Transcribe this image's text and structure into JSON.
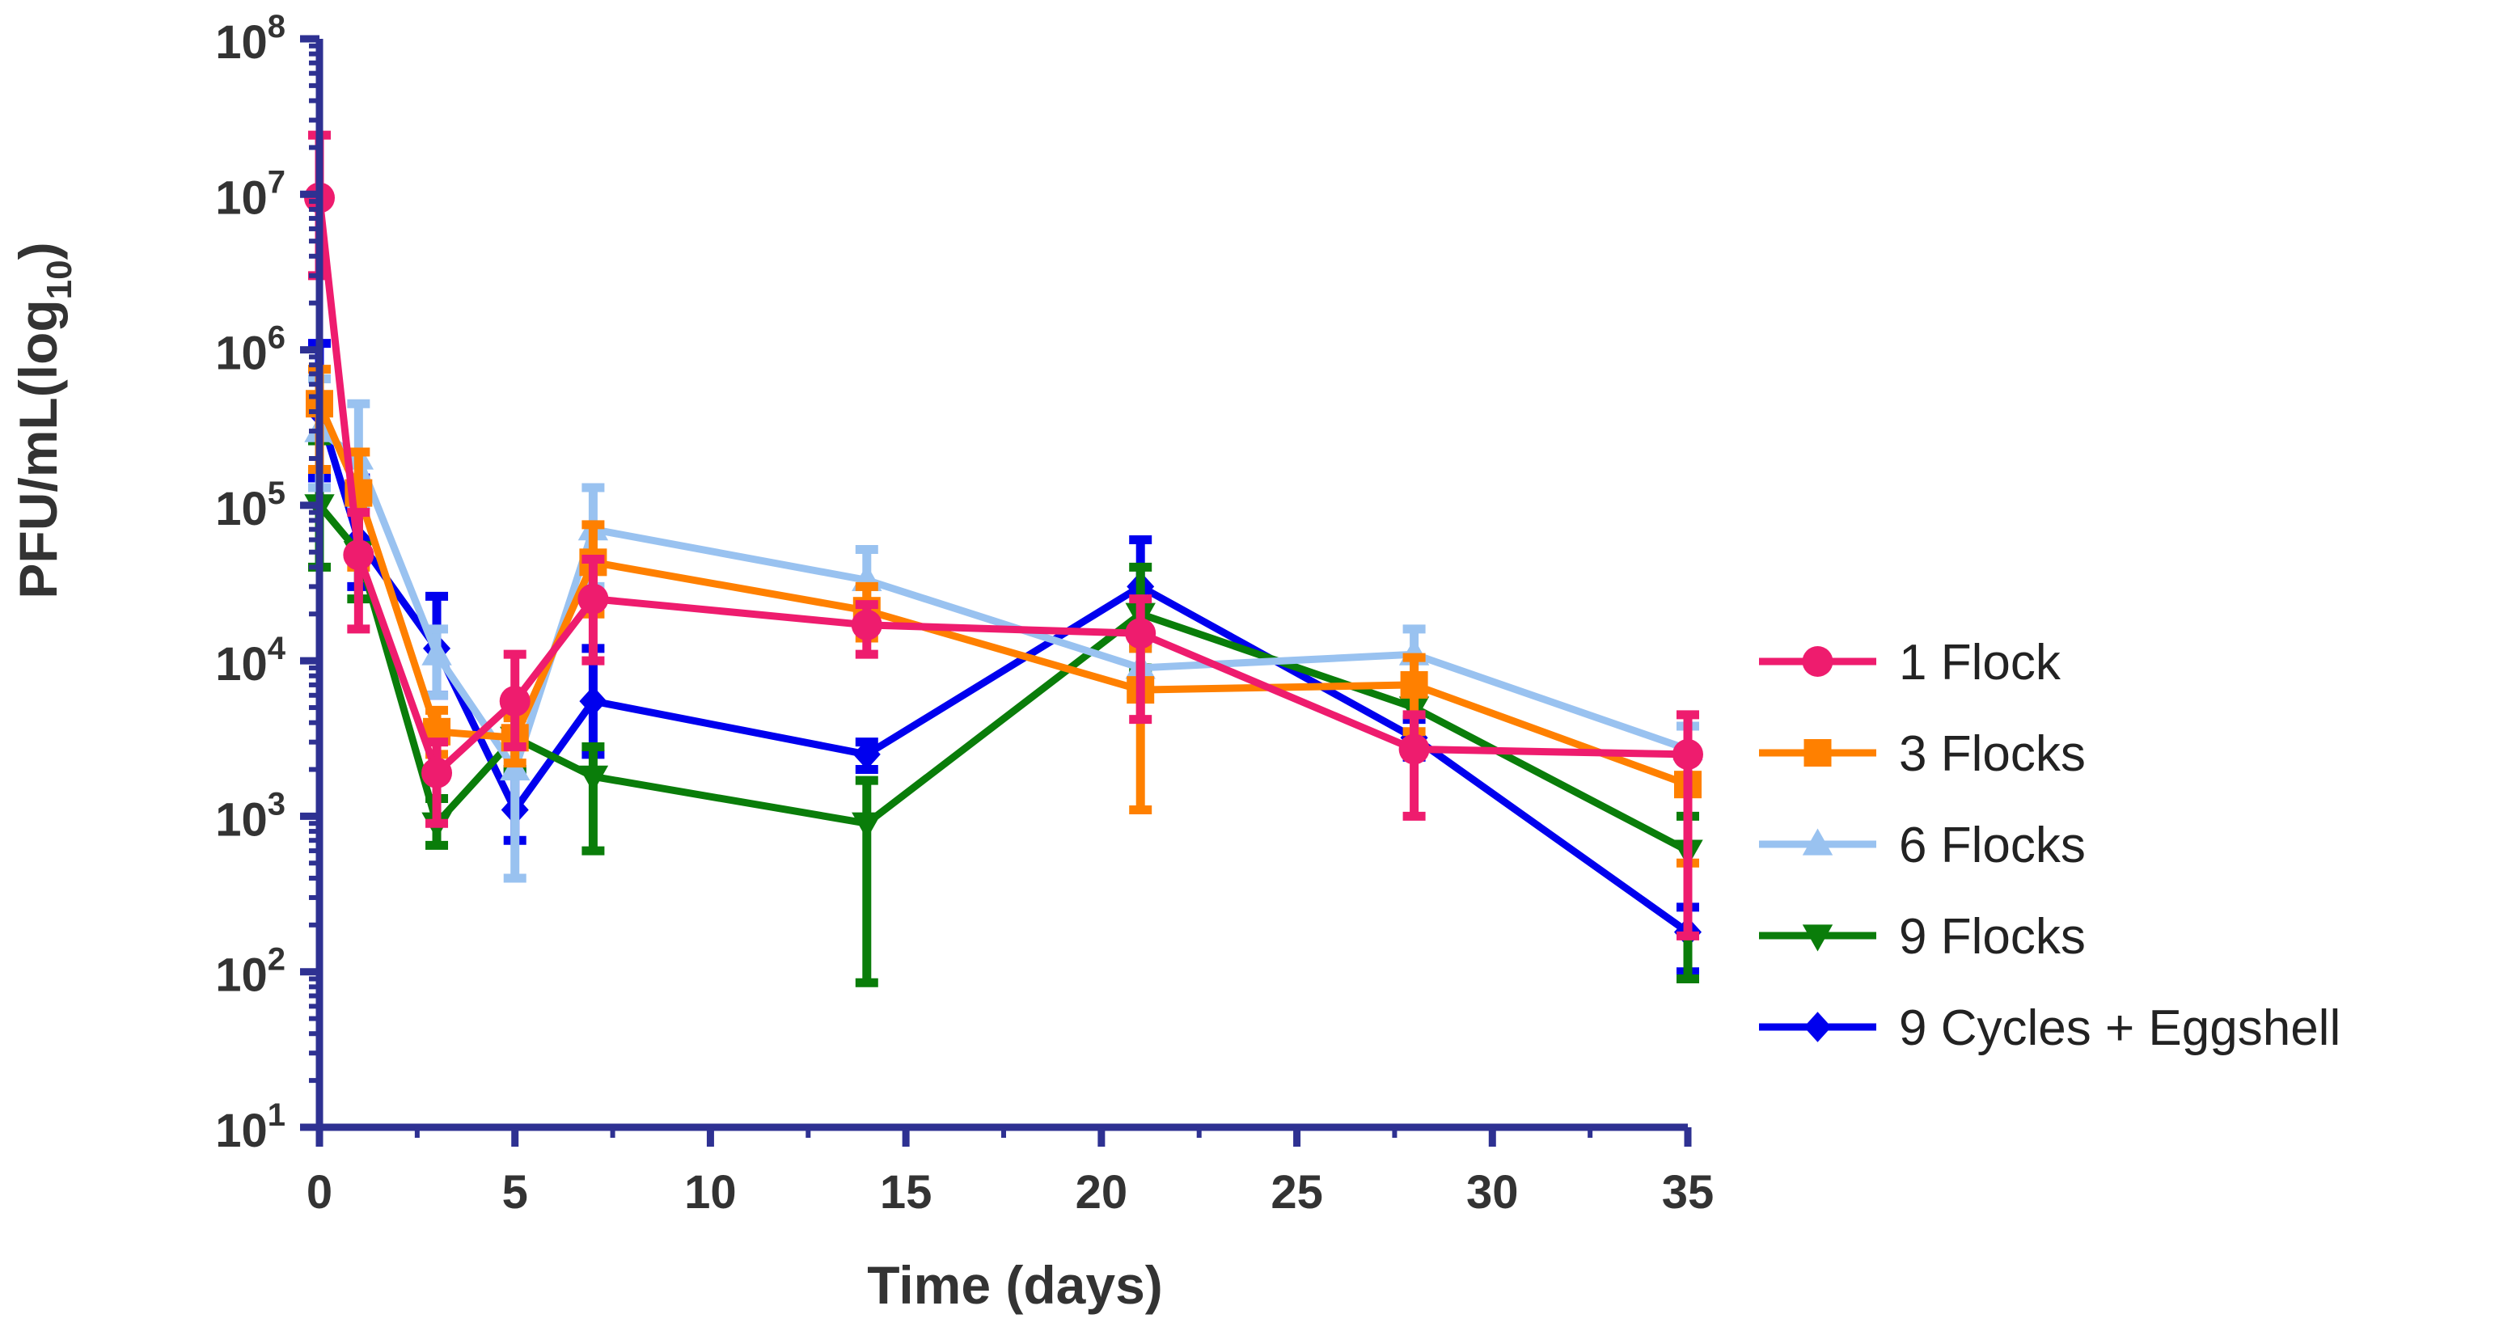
{
  "chart_data": {
    "type": "line",
    "title": "",
    "xlabel": "Time (days)",
    "ylabel_main": "PFU/mL(log",
    "ylabel_sub": "10",
    "ylabel_close": ")",
    "yscale": "log",
    "xlim": [
      0,
      35
    ],
    "ylim": [
      10,
      100000000
    ],
    "x_ticks": [
      0,
      5,
      10,
      15,
      20,
      25,
      30,
      35
    ],
    "y_ticks": [
      {
        "base": "10",
        "exp": "1",
        "value": 10
      },
      {
        "base": "10",
        "exp": "2",
        "value": 100
      },
      {
        "base": "10",
        "exp": "3",
        "value": 1000
      },
      {
        "base": "10",
        "exp": "4",
        "value": 10000
      },
      {
        "base": "10",
        "exp": "5",
        "value": 100000
      },
      {
        "base": "10",
        "exp": "6",
        "value": 1000000
      },
      {
        "base": "10",
        "exp": "7",
        "value": 10000000
      },
      {
        "base": "10",
        "exp": "8",
        "value": 100000000
      }
    ],
    "grid": false,
    "legend_position": "right",
    "series": [
      {
        "name": "9 Cycles + Eggshell",
        "color": "#0000ee",
        "marker": "diamond",
        "points": [
          {
            "x": 0,
            "y": 400000,
            "lo": 150000,
            "hi": 1100000
          },
          {
            "x": 1,
            "y": 60000,
            "lo": 30000,
            "hi": 150000
          },
          {
            "x": 3,
            "y": 12000,
            "lo": 6000,
            "hi": 26000
          },
          {
            "x": 5,
            "y": 1100,
            "lo": 700,
            "hi": 2000
          },
          {
            "x": 7,
            "y": 5500,
            "lo": 2500,
            "hi": 12000
          },
          {
            "x": 14,
            "y": 2500,
            "lo": 2000,
            "hi": 3000
          },
          {
            "x": 21,
            "y": 30000,
            "lo": 13000,
            "hi": 60000
          },
          {
            "x": 28,
            "y": 3200,
            "lo": 2400,
            "hi": 4200
          },
          {
            "x": 35,
            "y": 180,
            "lo": 100,
            "hi": 260
          }
        ]
      },
      {
        "name": "9 Flocks",
        "color": "#0a7d0a",
        "marker": "triangle-down",
        "points": [
          {
            "x": 0,
            "y": 100000,
            "lo": 40000,
            "hi": 260000
          },
          {
            "x": 1,
            "y": 50000,
            "lo": 25000,
            "hi": 110000
          },
          {
            "x": 3,
            "y": 900,
            "lo": 650,
            "hi": 1300
          },
          {
            "x": 5,
            "y": 3200,
            "lo": 2000,
            "hi": 4500
          },
          {
            "x": 7,
            "y": 1800,
            "lo": 600,
            "hi": 2800
          },
          {
            "x": 14,
            "y": 900,
            "lo": 85,
            "hi": 1700
          },
          {
            "x": 21,
            "y": 20000,
            "lo": 9000,
            "hi": 40000
          },
          {
            "x": 28,
            "y": 5000,
            "lo": 2500,
            "hi": 8000
          },
          {
            "x": 35,
            "y": 600,
            "lo": 90,
            "hi": 1000
          }
        ]
      },
      {
        "name": "6 Flocks",
        "color": "#99c2f0",
        "marker": "triangle-up",
        "points": [
          {
            "x": 0,
            "y": 300000,
            "lo": 130000,
            "hi": 650000
          },
          {
            "x": 1,
            "y": 200000,
            "lo": 100000,
            "hi": 450000
          },
          {
            "x": 3,
            "y": 11000,
            "lo": 6000,
            "hi": 16000
          },
          {
            "x": 5,
            "y": 2000,
            "lo": 400,
            "hi": 3000
          },
          {
            "x": 7,
            "y": 70000,
            "lo": 30000,
            "hi": 130000
          },
          {
            "x": 14,
            "y": 33000,
            "lo": 20000,
            "hi": 52000
          },
          {
            "x": 21,
            "y": 9000,
            "lo": 6000,
            "hi": 12000
          },
          {
            "x": 28,
            "y": 11000,
            "lo": 7000,
            "hi": 16000
          },
          {
            "x": 35,
            "y": 2700,
            "lo": 1800,
            "hi": 3800
          }
        ]
      },
      {
        "name": "3 Flocks",
        "color": "#ff8000",
        "marker": "square",
        "points": [
          {
            "x": 0,
            "y": 450000,
            "lo": 170000,
            "hi": 750000
          },
          {
            "x": 1,
            "y": 120000,
            "lo": 40000,
            "hi": 220000
          },
          {
            "x": 3,
            "y": 3500,
            "lo": 2500,
            "hi": 4800
          },
          {
            "x": 5,
            "y": 3200,
            "lo": 2200,
            "hi": 4300
          },
          {
            "x": 7,
            "y": 43000,
            "lo": 20000,
            "hi": 75000
          },
          {
            "x": 14,
            "y": 21000,
            "lo": 14000,
            "hi": 30000
          },
          {
            "x": 21,
            "y": 6500,
            "lo": 1100,
            "hi": 12000
          },
          {
            "x": 28,
            "y": 7000,
            "lo": 3500,
            "hi": 10500
          },
          {
            "x": 35,
            "y": 1600,
            "lo": 500,
            "hi": 2700
          }
        ]
      },
      {
        "name": "1 Flock",
        "color": "#ee1c6e",
        "marker": "circle",
        "points": [
          {
            "x": 0,
            "y": 9500000,
            "lo": 3000000,
            "hi": 24000000
          },
          {
            "x": 1,
            "y": 48000,
            "lo": 16000,
            "hi": 90000
          },
          {
            "x": 3,
            "y": 1900,
            "lo": 900,
            "hi": 3000
          },
          {
            "x": 5,
            "y": 5500,
            "lo": 2800,
            "hi": 11000
          },
          {
            "x": 7,
            "y": 25000,
            "lo": 10000,
            "hi": 45000
          },
          {
            "x": 14,
            "y": 17000,
            "lo": 11000,
            "hi": 23000
          },
          {
            "x": 21,
            "y": 15000,
            "lo": 4200,
            "hi": 25000
          },
          {
            "x": 28,
            "y": 2700,
            "lo": 1000,
            "hi": 4500
          },
          {
            "x": 35,
            "y": 2500,
            "lo": 170,
            "hi": 4500
          }
        ]
      }
    ],
    "legend": [
      {
        "name": "1 Flock",
        "color": "#ee1c6e",
        "marker": "circle"
      },
      {
        "name": "3 Flocks",
        "color": "#ff8000",
        "marker": "square"
      },
      {
        "name": "6 Flocks",
        "color": "#99c2f0",
        "marker": "triangle-up"
      },
      {
        "name": "9 Flocks",
        "color": "#0a7d0a",
        "marker": "triangle-down"
      },
      {
        "name": "9 Cycles + Eggshell",
        "color": "#0000ee",
        "marker": "diamond"
      }
    ],
    "axis_color": "#2e3192",
    "label_color": "#333333"
  }
}
